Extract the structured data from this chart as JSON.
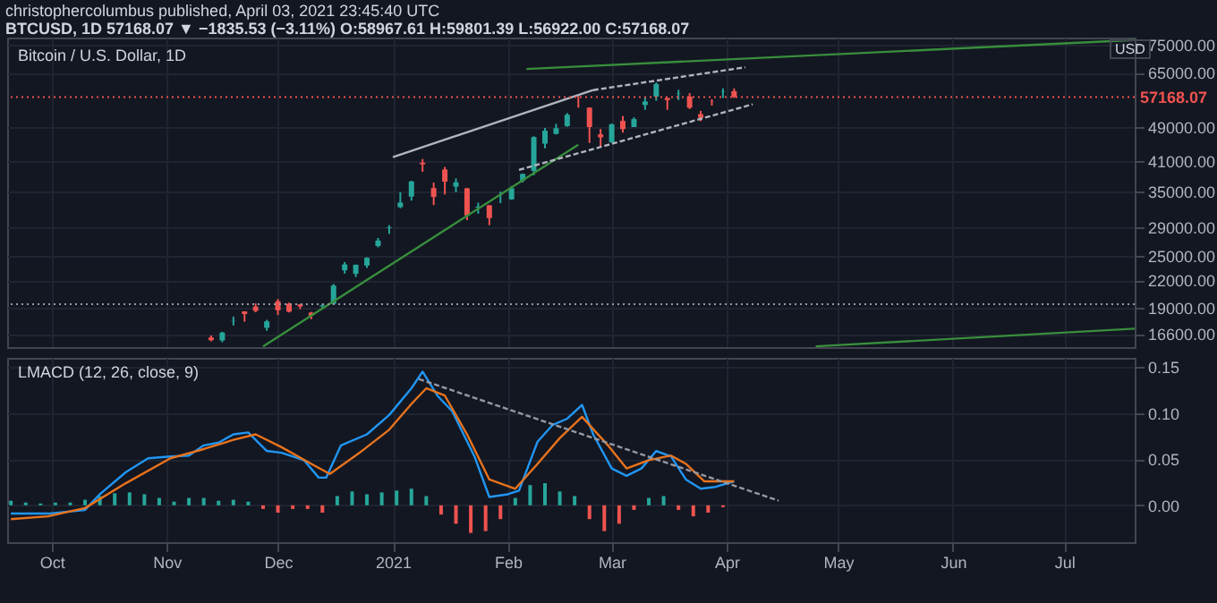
{
  "chart_data": [
    {
      "type": "candlestick",
      "title": "Bitcoin / U.S. Dollar, 1D",
      "annotations": [
        "christophercolumbus published, April 03, 2021 23:45:40 UTC",
        "BTCUSD, 1D 57168.07 ▼ −1835.53 (−3.11%) O:58967.61 H:59801.39 L:56922.00 C:57168.07",
        "USD"
      ],
      "x": [
        "2020-11-13",
        "2020-11-16",
        "2020-11-19",
        "2020-11-22",
        "2020-11-25",
        "2020-11-28",
        "2020-12-01",
        "2020-12-04",
        "2020-12-07",
        "2020-12-10",
        "2020-12-13",
        "2020-12-16",
        "2020-12-19",
        "2020-12-22",
        "2020-12-25",
        "2020-12-28",
        "2020-12-31",
        "2021-01-03",
        "2021-01-06",
        "2021-01-09",
        "2021-01-12",
        "2021-01-15",
        "2021-01-18",
        "2021-01-21",
        "2021-01-24",
        "2021-01-27",
        "2021-01-30",
        "2021-02-02",
        "2021-02-05",
        "2021-02-08",
        "2021-02-11",
        "2021-02-14",
        "2021-02-17",
        "2021-02-20",
        "2021-02-23",
        "2021-02-26",
        "2021-03-01",
        "2021-03-04",
        "2021-03-07",
        "2021-03-10",
        "2021-03-13",
        "2021-03-16",
        "2021-03-19",
        "2021-03-22",
        "2021-03-25",
        "2021-03-28",
        "2021-03-31",
        "2021-04-03"
      ],
      "ohlc": [
        [
          16300,
          16480,
          15970,
          16070
        ],
        [
          16050,
          16800,
          15900,
          16720
        ],
        [
          17800,
          18180,
          17350,
          17820
        ],
        [
          18680,
          18700,
          17700,
          18420
        ],
        [
          19150,
          19480,
          18590,
          18730
        ],
        [
          17150,
          17870,
          16880,
          17730
        ],
        [
          19700,
          19920,
          18330,
          18790
        ],
        [
          19450,
          19560,
          18570,
          18650
        ],
        [
          19370,
          19420,
          18900,
          19170
        ],
        [
          18560,
          18630,
          17930,
          18250
        ],
        [
          19170,
          19410,
          19010,
          19270
        ],
        [
          19430,
          21560,
          19300,
          21380
        ],
        [
          23150,
          24170,
          22750,
          23870
        ],
        [
          22730,
          23840,
          22360,
          23830
        ],
        [
          23730,
          24770,
          23430,
          24710
        ],
        [
          26280,
          27400,
          26100,
          27040
        ],
        [
          28890,
          29300,
          28000,
          28990
        ],
        [
          32190,
          34780,
          32000,
          32960
        ],
        [
          34000,
          36940,
          33300,
          36820
        ],
        [
          40600,
          41380,
          38720,
          40240
        ],
        [
          35570,
          36600,
          32530,
          33950
        ],
        [
          39180,
          39700,
          34400,
          36770
        ],
        [
          35830,
          37400,
          34800,
          36630
        ],
        [
          35500,
          35600,
          30070,
          30830
        ],
        [
          32100,
          32950,
          31100,
          32290
        ],
        [
          32490,
          32560,
          29300,
          30400
        ],
        [
          34270,
          34900,
          32860,
          34320
        ],
        [
          33530,
          35950,
          33430,
          35520
        ],
        [
          36930,
          38300,
          36600,
          38290
        ],
        [
          38900,
          46600,
          37990,
          46400
        ],
        [
          44840,
          48680,
          43750,
          47970
        ],
        [
          47180,
          49700,
          47050,
          48580
        ],
        [
          49150,
          52600,
          48950,
          52150
        ],
        [
          55900,
          57500,
          54100,
          55880
        ],
        [
          54100,
          54200,
          45000,
          48900
        ],
        [
          47070,
          48400,
          44200,
          46340
        ],
        [
          45160,
          49800,
          45000,
          49600
        ],
        [
          50500,
          51800,
          47500,
          48370
        ],
        [
          48900,
          51450,
          48900,
          50970
        ],
        [
          54870,
          57200,
          53500,
          55870
        ],
        [
          57300,
          61700,
          56100,
          61200
        ],
        [
          56900,
          56900,
          53500,
          56300
        ],
        [
          58100,
          59400,
          56300,
          58200
        ],
        [
          57350,
          58400,
          53700,
          54100
        ],
        [
          52300,
          53200,
          50400,
          51300
        ],
        [
          55850,
          56500,
          54700,
          55800
        ],
        [
          58800,
          59800,
          56900,
          58900
        ],
        [
          58967.61,
          59801.39,
          56922.0,
          57168.07
        ]
      ],
      "colors": [
        "#ef5350",
        "#26a69a",
        "#26a69a",
        "#ef5350",
        "#ef5350",
        "#26a69a",
        "#ef5350",
        "#ef5350",
        "#ef5350",
        "#ef5350",
        "#26a69a",
        "#26a69a",
        "#26a69a",
        "#26a69a",
        "#26a69a",
        "#26a69a",
        "#26a69a",
        "#26a69a",
        "#26a69a",
        "#ef5350",
        "#ef5350",
        "#ef5350",
        "#26a69a",
        "#ef5350",
        "#26a69a",
        "#ef5350",
        "#26a69a",
        "#26a69a",
        "#26a69a",
        "#26a69a",
        "#26a69a",
        "#26a69a",
        "#26a69a",
        "#ef5350",
        "#ef5350",
        "#ef5350",
        "#26a69a",
        "#ef5350",
        "#26a69a",
        "#26a69a",
        "#26a69a",
        "#ef5350",
        "#26a69a",
        "#ef5350",
        "#ef5350",
        "#ef5350",
        "#26a69a",
        "#ef5350"
      ],
      "series": [
        {
          "type": "line",
          "color": "#388e3c",
          "x": [
            "2021-02-06",
            "2021-07-20"
          ],
          "values": [
            66200,
            77000
          ]
        },
        {
          "type": "line",
          "color": "#388e3c",
          "x": [
            "2021-04-25",
            "2021-07-20"
          ],
          "values": [
            15560,
            17070
          ]
        },
        {
          "type": "line",
          "color": "#388e3c",
          "x": [
            "2020-11-27",
            "2021-02-20"
          ],
          "values": [
            15560,
            44600
          ]
        },
        {
          "type": "line",
          "color": "#b2b5be",
          "x": [
            "2021-01-01",
            "2021-02-24"
          ],
          "values": [
            41800,
            59300
          ]
        },
        {
          "type": "line",
          "color": "#b2b5be",
          "line_style": "dashed",
          "x": [
            "2021-02-24",
            "2021-04-06"
          ],
          "values": [
            59300,
            66800
          ]
        },
        {
          "type": "line",
          "color": "#b2b5be",
          "line_style": "dashed",
          "x": [
            "2021-02-04",
            "2021-04-08"
          ],
          "values": [
            39100,
            55070
          ]
        }
      ],
      "ref_lines": [
        {
          "axis": "y",
          "value": 57168.07,
          "label": "57168.07",
          "color": "#ef5350",
          "line_style": "dotted"
        },
        {
          "axis": "y",
          "value": 19400,
          "color": "#9598a1",
          "line_style": "dotted"
        }
      ],
      "log": "y",
      "grid": true,
      "tick_labels": "y",
      "xlim": [
        "2020-09-19",
        "2021-07-20"
      ],
      "xticks": [
        {
          "value": "2020-10-01",
          "label": null
        },
        {
          "value": "2020-11-01",
          "label": null
        },
        {
          "value": "2020-12-01",
          "label": null
        },
        {
          "value": "2021-01-01",
          "label": null
        },
        {
          "value": "2021-02-01",
          "label": null
        },
        {
          "value": "2021-03-01",
          "label": null
        },
        {
          "value": "2021-04-01",
          "label": null
        },
        {
          "value": "2021-05-01",
          "label": null
        },
        {
          "value": "2021-06-01",
          "label": null
        },
        {
          "value": "2021-07-01",
          "label": null
        }
      ],
      "ylim": [
        15500,
        78000
      ],
      "yticks": [
        {
          "value": 16600,
          "label": "16600.00"
        },
        {
          "value": 19000,
          "label": "19000.00"
        },
        {
          "value": 22000,
          "label": "22000.00"
        },
        {
          "value": 25000,
          "label": "25000.00"
        },
        {
          "value": 29000,
          "label": "29000.00"
        },
        {
          "value": 35000,
          "label": "35000.00"
        },
        {
          "value": 41000,
          "label": "41000.00"
        },
        {
          "value": 49000,
          "label": "49000.00"
        },
        {
          "value": 65000,
          "label": "65000.00"
        },
        {
          "value": 75000,
          "label": "75000.00"
        }
      ]
    },
    {
      "type": "line",
      "title": "LMACD (12, 26, close, 9)",
      "series": [
        {
          "type": "bar",
          "x": [
            "2020-09-20",
            "2020-09-24",
            "2020-09-28",
            "2020-10-02",
            "2020-10-06",
            "2020-10-10",
            "2020-10-14",
            "2020-10-18",
            "2020-10-22",
            "2020-10-26",
            "2020-10-30",
            "2020-11-03",
            "2020-11-07",
            "2020-11-11",
            "2020-11-15",
            "2020-11-19",
            "2020-11-23",
            "2020-11-27",
            "2020-12-01",
            "2020-12-05",
            "2020-12-09",
            "2020-12-13",
            "2020-12-17",
            "2020-12-21",
            "2020-12-25",
            "2020-12-29",
            "2021-01-02",
            "2021-01-06",
            "2021-01-10",
            "2021-01-14",
            "2021-01-18",
            "2021-01-22",
            "2021-01-26",
            "2021-01-30",
            "2021-02-03",
            "2021-02-07",
            "2021-02-11",
            "2021-02-15",
            "2021-02-19",
            "2021-02-23",
            "2021-02-27",
            "2021-03-03",
            "2021-03-07",
            "2021-03-11",
            "2021-03-15",
            "2021-03-19",
            "2021-03-23",
            "2021-03-27",
            "2021-03-31"
          ],
          "values": [
            0.005,
            0.003,
            0.002,
            0.003,
            0.003,
            0.006,
            0.01,
            0.013,
            0.014,
            0.012,
            0.008,
            0.004,
            0.008,
            0.008,
            0.005,
            0.006,
            0.004,
            -0.004,
            -0.008,
            -0.004,
            -0.004,
            -0.008,
            0.01,
            0.015,
            0.012,
            0.014,
            0.016,
            0.018,
            0.01,
            -0.01,
            -0.02,
            -0.03,
            -0.028,
            -0.015,
            0.008,
            0.022,
            0.024,
            0.015,
            0.01,
            -0.015,
            -0.028,
            -0.02,
            -0.005,
            0.008,
            0.01,
            -0.005,
            -0.012,
            -0.008,
            -0.002
          ],
          "colors": [
            "#26a69a",
            "#26a69a",
            "#26a69a",
            "#26a69a",
            "#26a69a",
            "#26a69a",
            "#26a69a",
            "#26a69a",
            "#26a69a",
            "#26a69a",
            "#26a69a",
            "#26a69a",
            "#26a69a",
            "#26a69a",
            "#26a69a",
            "#26a69a",
            "#26a69a",
            "#ef5350",
            "#ef5350",
            "#ef5350",
            "#ef5350",
            "#ef5350",
            "#26a69a",
            "#26a69a",
            "#26a69a",
            "#26a69a",
            "#26a69a",
            "#26a69a",
            "#26a69a",
            "#ef5350",
            "#ef5350",
            "#ef5350",
            "#ef5350",
            "#ef5350",
            "#26a69a",
            "#26a69a",
            "#26a69a",
            "#26a69a",
            "#26a69a",
            "#ef5350",
            "#ef5350",
            "#ef5350",
            "#ef5350",
            "#26a69a",
            "#26a69a",
            "#ef5350",
            "#ef5350",
            "#ef5350",
            "#ef5350"
          ]
        },
        {
          "type": "line",
          "color": "#2196f3",
          "x": [
            "2020-09-20",
            "2020-09-30",
            "2020-10-10",
            "2020-10-14",
            "2020-10-21",
            "2020-10-27",
            "2020-11-02",
            "2020-11-07",
            "2020-11-11",
            "2020-11-15",
            "2020-11-19",
            "2020-11-23",
            "2020-11-28",
            "2020-12-02",
            "2020-12-08",
            "2020-12-12",
            "2020-12-14",
            "2020-12-18",
            "2020-12-25",
            "2020-12-31",
            "2021-01-06",
            "2021-01-09",
            "2021-01-13",
            "2021-01-17",
            "2021-01-23",
            "2021-01-27",
            "2021-02-01",
            "2021-02-04",
            "2021-02-09",
            "2021-02-13",
            "2021-02-17",
            "2021-02-21",
            "2021-02-24",
            "2021-03-01",
            "2021-03-05",
            "2021-03-09",
            "2021-03-13",
            "2021-03-17",
            "2021-03-21",
            "2021-03-25",
            "2021-03-29",
            "2021-04-03"
          ],
          "values": [
            -0.009,
            -0.009,
            -0.005,
            0.012,
            0.036,
            0.051,
            0.053,
            0.054,
            0.065,
            0.068,
            0.077,
            0.079,
            0.059,
            0.057,
            0.049,
            0.03,
            0.03,
            0.065,
            0.077,
            0.098,
            0.127,
            0.145,
            0.119,
            0.102,
            0.053,
            0.009,
            0.012,
            0.016,
            0.069,
            0.087,
            0.094,
            0.109,
            0.077,
            0.04,
            0.032,
            0.04,
            0.059,
            0.053,
            0.028,
            0.018,
            0.02,
            0.026
          ]
        },
        {
          "type": "line",
          "color": "#e8731c",
          "x": [
            "2020-09-20",
            "2020-09-30",
            "2020-10-10",
            "2020-10-21",
            "2020-11-02",
            "2020-11-11",
            "2020-11-19",
            "2020-11-25",
            "2020-12-02",
            "2020-12-10",
            "2020-12-15",
            "2020-12-23",
            "2020-12-31",
            "2021-01-06",
            "2021-01-10",
            "2021-01-15",
            "2021-01-21",
            "2021-01-27",
            "2021-02-03",
            "2021-02-09",
            "2021-02-15",
            "2021-02-21",
            "2021-02-28",
            "2021-03-05",
            "2021-03-11",
            "2021-03-17",
            "2021-03-21",
            "2021-03-26",
            "2021-04-03"
          ],
          "values": [
            -0.015,
            -0.012,
            -0.003,
            0.024,
            0.051,
            0.061,
            0.071,
            0.077,
            0.063,
            0.045,
            0.034,
            0.057,
            0.082,
            0.11,
            0.127,
            0.119,
            0.077,
            0.028,
            0.018,
            0.045,
            0.073,
            0.096,
            0.065,
            0.04,
            0.049,
            0.054,
            0.045,
            0.026,
            0.026
          ]
        },
        {
          "type": "line",
          "color": "#9598a1",
          "line_style": "dashed",
          "x": [
            "2021-01-08",
            "2021-04-15"
          ],
          "values": [
            0.137,
            0.005
          ]
        }
      ],
      "grid": true,
      "xlim": [
        "2020-09-19",
        "2021-07-20"
      ],
      "xticks": [
        {
          "value": "2020-10-01",
          "label": "Oct"
        },
        {
          "value": "2020-11-01",
          "label": "Nov"
        },
        {
          "value": "2020-12-01",
          "label": "Dec"
        },
        {
          "value": "2021-01-01",
          "label": "2021"
        },
        {
          "value": "2021-02-01",
          "label": "Feb"
        },
        {
          "value": "2021-03-01",
          "label": "Mar"
        },
        {
          "value": "2021-04-01",
          "label": "Apr"
        },
        {
          "value": "2021-05-01",
          "label": "May"
        },
        {
          "value": "2021-06-01",
          "label": "Jun"
        },
        {
          "value": "2021-07-01",
          "label": "Jul"
        }
      ],
      "ylim": [
        -0.04,
        0.16
      ],
      "yticks": [
        {
          "value": 0,
          "label": "0.00"
        },
        {
          "value": 0.05,
          "label": "0.05"
        },
        {
          "value": 0.1,
          "label": "0.10"
        },
        {
          "value": 0.15,
          "label": "0.15"
        }
      ]
    }
  ]
}
